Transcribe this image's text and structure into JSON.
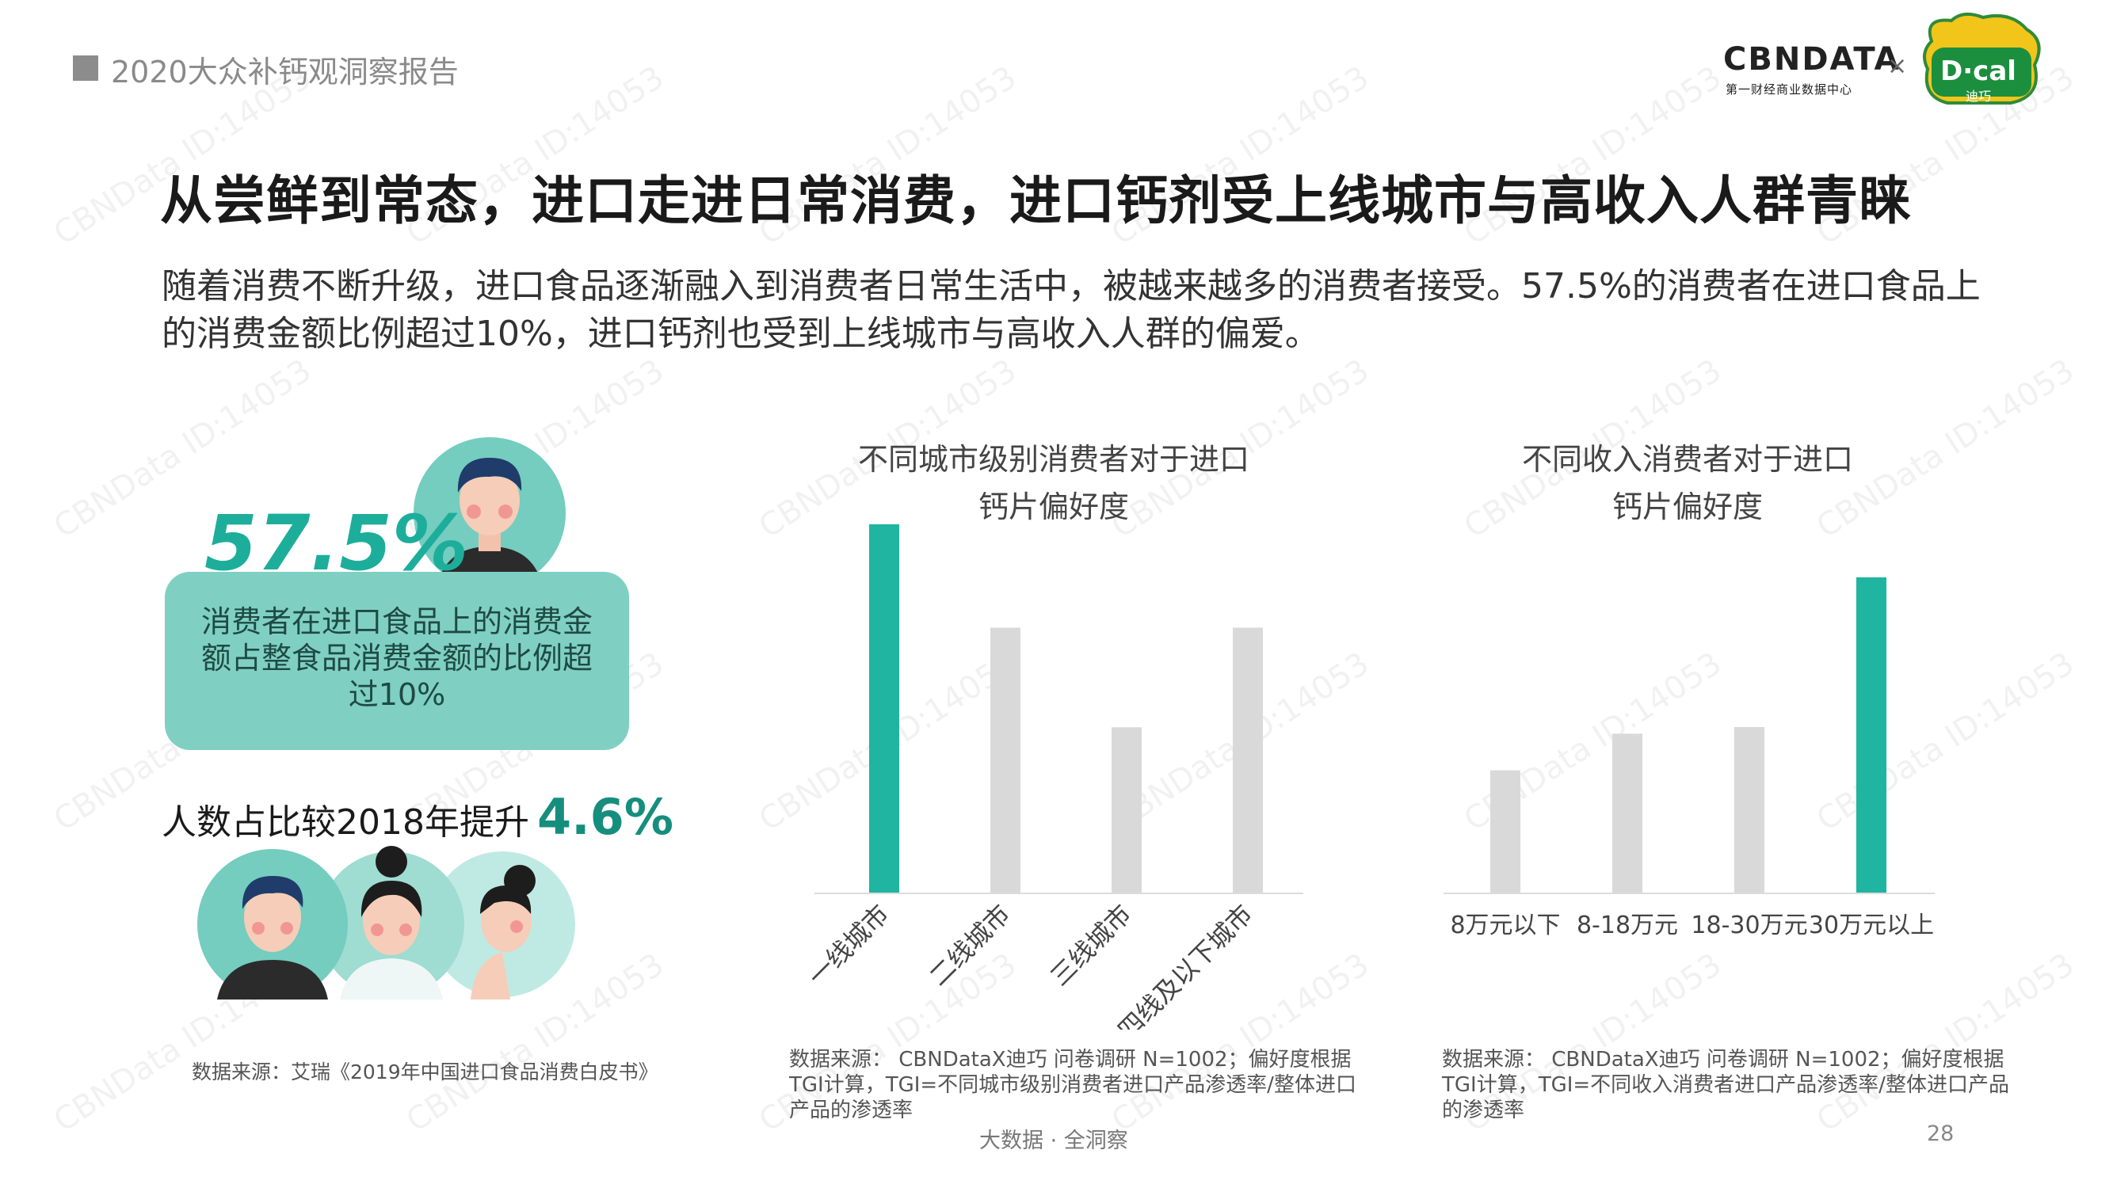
{
  "header": {
    "report_title": "2020大众补钙观洞察报告",
    "logo_cbn": "CBNDATA",
    "logo_cbn_sub": "第一财经商业数据中心",
    "logo_x": "×",
    "logo_dcal": "D·cal",
    "logo_dcal_sub": "迪巧"
  },
  "title": "从尝鲜到常态，进口走进日常消费，进口钙剂受上线城市与高收入人群青睐",
  "intro": "随着消费不断升级，进口食品逐渐融入到消费者日常生活中，被越来越多的消费者接受。57.5%的消费者在进口食品上的消费金额比例超过10%，进口钙剂也受到上线城市与高收入人群的偏爱。",
  "stat": {
    "value": "57.5%",
    "desc": "消费者在进口食品上的消费金额占整食品消费金额的比例超过10%",
    "rise_label": "人数占比较2018年提升",
    "rise_value": "4.6%",
    "source": "数据来源：艾瑞《2019年中国进口食品消费白皮书》"
  },
  "chart_data": [
    {
      "type": "bar",
      "title_line1": "不同城市级别消费者对于进口",
      "title_line2": "钙片偏好度",
      "categories": [
        "一线城市",
        "二线城市",
        "三线城市",
        "四线及以下城市"
      ],
      "values": [
        100,
        72,
        45,
        72
      ],
      "highlight_index": 0,
      "colors": {
        "highlight": "#1fb5a1",
        "normal": "#d9d9d9"
      },
      "source": "数据来源： CBNDataX迪巧 问卷调研 N=1002；偏好度根据TGI计算，TGI=不同城市级别消费者进口产品渗透率/整体进口产品的渗透率"
    },
    {
      "type": "bar",
      "title_line1": "不同收入消费者对于进口",
      "title_line2": "钙片偏好度",
      "categories": [
        "8万元以下",
        "8-18万元",
        "18-30万元",
        "30万元以上"
      ],
      "values": [
        37,
        48,
        50,
        95
      ],
      "highlight_index": 3,
      "colors": {
        "highlight": "#1fb5a1",
        "normal": "#d9d9d9"
      },
      "source": "数据来源： CBNDataX迪巧 问卷调研 N=1002；偏好度根据TGI计算，TGI=不同收入消费者进口产品渗透率/整体进口产品的渗透率"
    }
  ],
  "footer": {
    "tagline": "大数据 · 全洞察",
    "page": "28"
  },
  "watermark": "CBNData ID:14053",
  "colors": {
    "accent": "#1fb5a1",
    "card": "#7fd0c2",
    "dark_teal": "#168e7d"
  }
}
